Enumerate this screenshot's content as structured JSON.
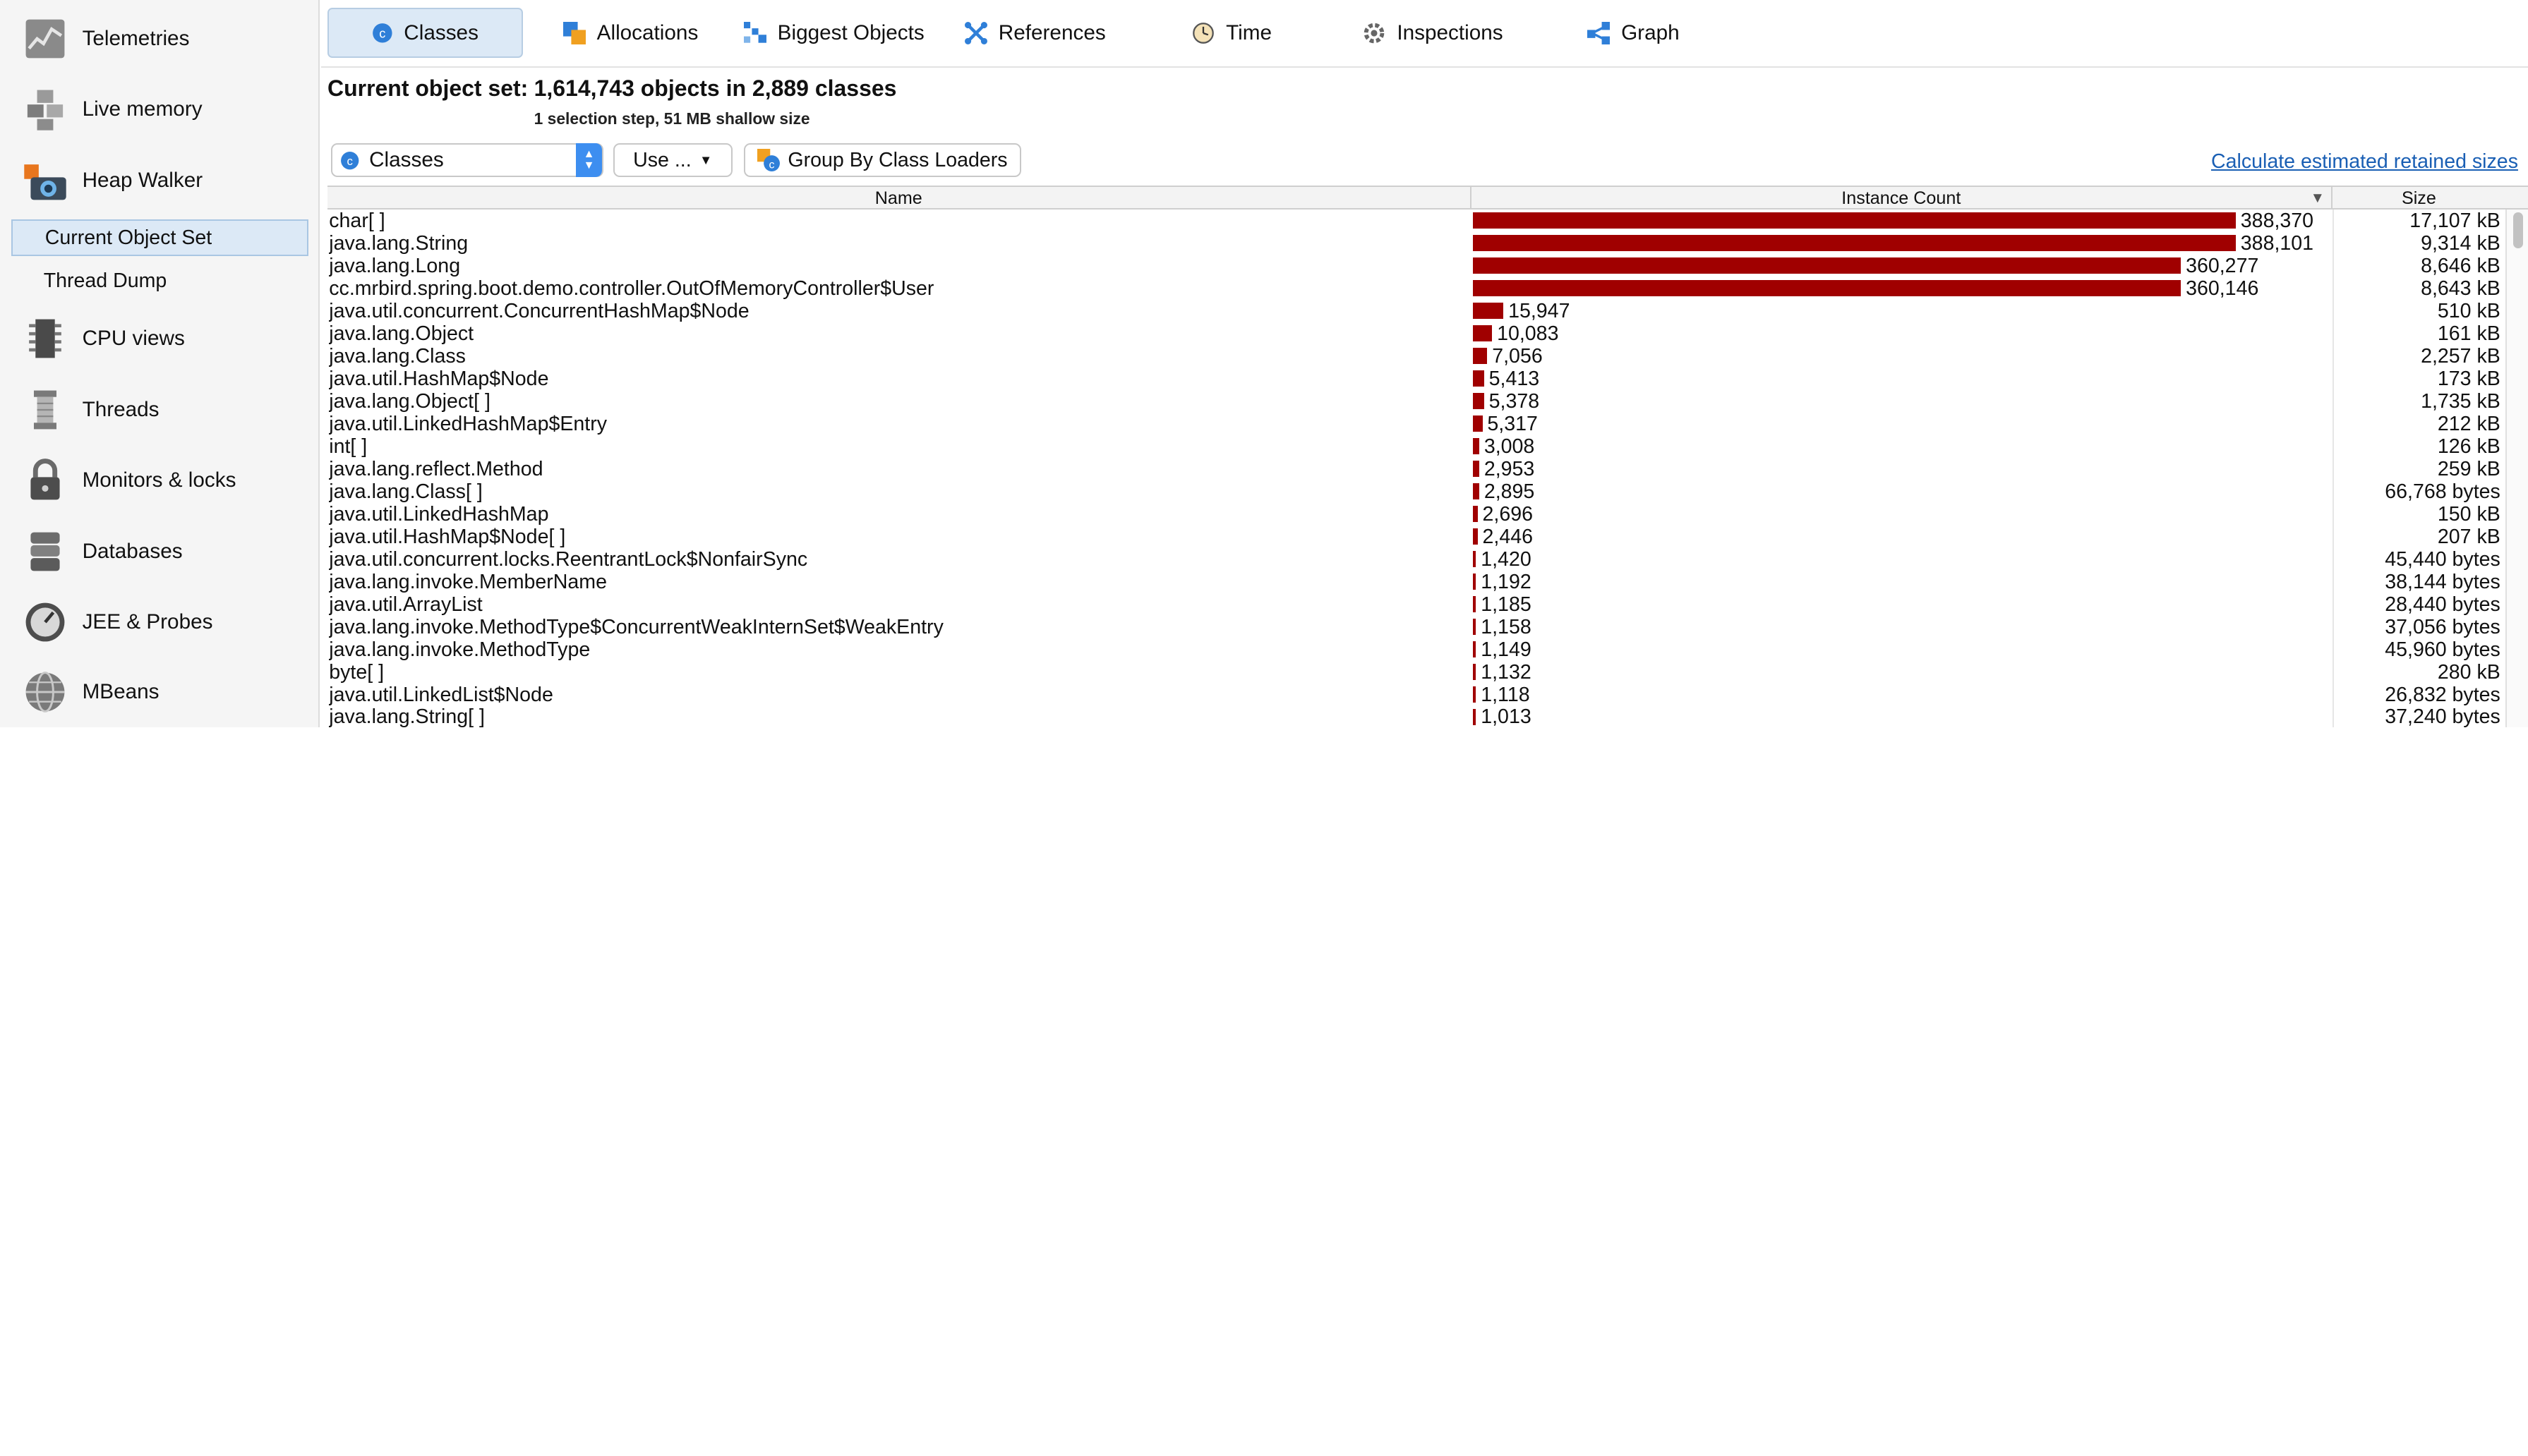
{
  "sidebar": {
    "items": [
      {
        "label": "Telemetries",
        "icon": "telemetries-icon"
      },
      {
        "label": "Live memory",
        "icon": "live-memory-icon"
      },
      {
        "label": "Heap Walker",
        "icon": "heap-walker-icon"
      },
      {
        "label": "CPU views",
        "icon": "cpu-views-icon"
      },
      {
        "label": "Threads",
        "icon": "threads-icon"
      },
      {
        "label": "Monitors & locks",
        "icon": "monitors-locks-icon"
      },
      {
        "label": "Databases",
        "icon": "databases-icon"
      },
      {
        "label": "JEE & Probes",
        "icon": "jee-probes-icon"
      },
      {
        "label": "MBeans",
        "icon": "mbeans-icon"
      }
    ],
    "subitems": [
      {
        "label": "Current Object Set",
        "selected": true
      },
      {
        "label": "Thread Dump",
        "selected": false
      }
    ]
  },
  "tabs": [
    {
      "label": "Classes",
      "active": true,
      "icon": "classes-icon"
    },
    {
      "label": "Allocations",
      "active": false,
      "icon": "allocations-icon"
    },
    {
      "label": "Biggest Objects",
      "active": false,
      "icon": "biggest-objects-icon"
    },
    {
      "label": "References",
      "active": false,
      "icon": "references-icon"
    },
    {
      "label": "Time",
      "active": false,
      "icon": "time-icon"
    },
    {
      "label": "Inspections",
      "active": false,
      "icon": "inspections-icon"
    },
    {
      "label": "Graph",
      "active": false,
      "icon": "graph-icon"
    }
  ],
  "header": {
    "label": "Current object set:",
    "value": "1,614,743 objects in 2,889 classes",
    "subtitle": "1 selection step, 51 MB shallow size"
  },
  "toolbar": {
    "view_select": "Classes",
    "use_button": "Use ...",
    "group_button": "Group By Class Loaders",
    "retained_link": "Calculate estimated retained sizes"
  },
  "table": {
    "columns": {
      "name": "Name",
      "count": "Instance Count",
      "size": "Size"
    },
    "max_count": 388370,
    "bar_color": "#a00000",
    "rows": [
      {
        "name": "char[ ]",
        "count": 388370,
        "count_label": "388,370",
        "size": "17,107 kB"
      },
      {
        "name": "java.lang.String",
        "count": 388101,
        "count_label": "388,101",
        "size": "9,314 kB"
      },
      {
        "name": "java.lang.Long",
        "count": 360277,
        "count_label": "360,277",
        "size": "8,646 kB"
      },
      {
        "name": "cc.mrbird.spring.boot.demo.controller.OutOfMemoryController$User",
        "count": 360146,
        "count_label": "360,146",
        "size": "8,643 kB"
      },
      {
        "name": "java.util.concurrent.ConcurrentHashMap$Node",
        "count": 15947,
        "count_label": "15,947",
        "size": "510 kB"
      },
      {
        "name": "java.lang.Object",
        "count": 10083,
        "count_label": "10,083",
        "size": "161 kB"
      },
      {
        "name": "java.lang.Class",
        "count": 7056,
        "count_label": "7,056",
        "size": "2,257 kB"
      },
      {
        "name": "java.util.HashMap$Node",
        "count": 5413,
        "count_label": "5,413",
        "size": "173 kB"
      },
      {
        "name": "java.lang.Object[ ]",
        "count": 5378,
        "count_label": "5,378",
        "size": "1,735 kB"
      },
      {
        "name": "java.util.LinkedHashMap$Entry",
        "count": 5317,
        "count_label": "5,317",
        "size": "212 kB"
      },
      {
        "name": "int[ ]",
        "count": 3008,
        "count_label": "3,008",
        "size": "126 kB"
      },
      {
        "name": "java.lang.reflect.Method",
        "count": 2953,
        "count_label": "2,953",
        "size": "259 kB"
      },
      {
        "name": "java.lang.Class[ ]",
        "count": 2895,
        "count_label": "2,895",
        "size": "66,768 bytes"
      },
      {
        "name": "java.util.LinkedHashMap",
        "count": 2696,
        "count_label": "2,696",
        "size": "150 kB"
      },
      {
        "name": "java.util.HashMap$Node[ ]",
        "count": 2446,
        "count_label": "2,446",
        "size": "207 kB"
      },
      {
        "name": "java.util.concurrent.locks.ReentrantLock$NonfairSync",
        "count": 1420,
        "count_label": "1,420",
        "size": "45,440 bytes"
      },
      {
        "name": "java.lang.invoke.MemberName",
        "count": 1192,
        "count_label": "1,192",
        "size": "38,144 bytes"
      },
      {
        "name": "java.util.ArrayList",
        "count": 1185,
        "count_label": "1,185",
        "size": "28,440 bytes"
      },
      {
        "name": "java.lang.invoke.MethodType$ConcurrentWeakInternSet$WeakEntry",
        "count": 1158,
        "count_label": "1,158",
        "size": "37,056 bytes"
      },
      {
        "name": "java.lang.invoke.MethodType",
        "count": 1149,
        "count_label": "1,149",
        "size": "45,960 bytes"
      },
      {
        "name": "byte[ ]",
        "count": 1132,
        "count_label": "1,132",
        "size": "280 kB"
      },
      {
        "name": "java.util.LinkedList$Node",
        "count": 1118,
        "count_label": "1,118",
        "size": "26,832 bytes"
      },
      {
        "name": "java.lang.String[ ]",
        "count": 1013,
        "count_label": "1,013",
        "size": "37,240 bytes"
      }
    ]
  }
}
